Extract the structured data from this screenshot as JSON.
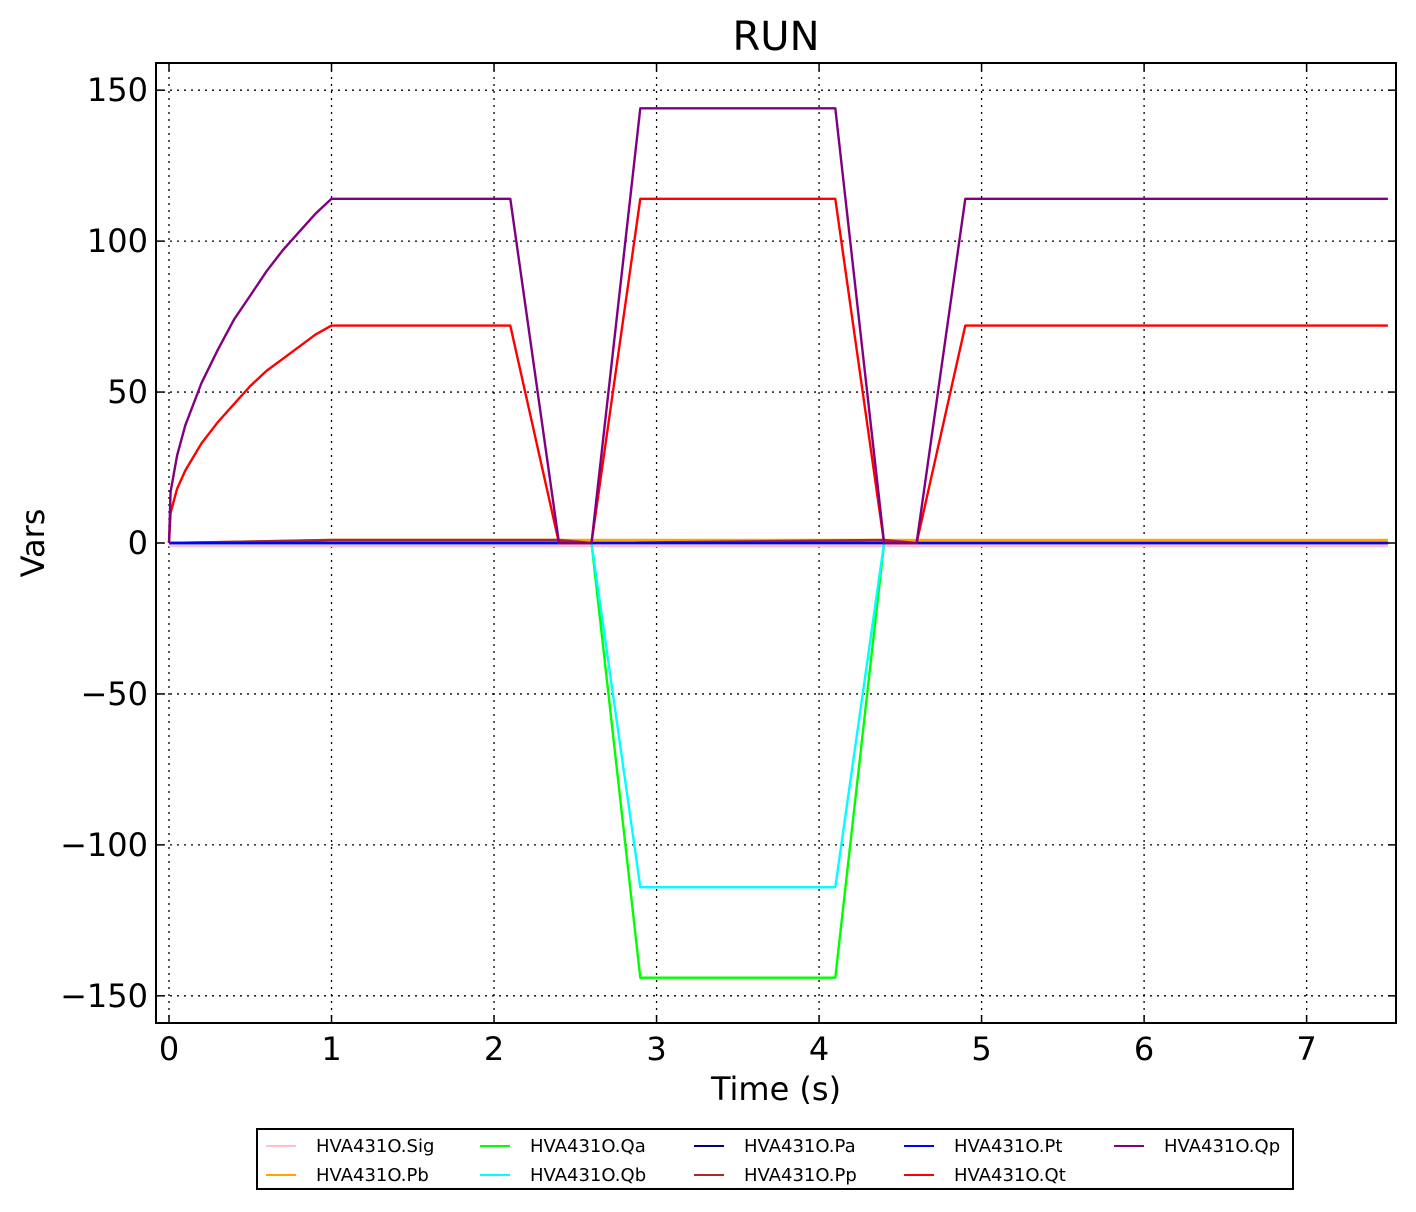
{
  "chart_data": {
    "type": "line",
    "title": "RUN",
    "xlabel": "Time (s)",
    "ylabel": "Vars",
    "xlim": [
      -0.08,
      7.55
    ],
    "ylim": [
      -159,
      159
    ],
    "xticks": [
      0,
      1,
      2,
      3,
      4,
      5,
      6,
      7
    ],
    "yticks": [
      150,
      100,
      50,
      0,
      -50,
      -100,
      -150
    ],
    "ytick_labels": [
      "150",
      "100",
      "50",
      "0",
      "−50",
      "−100",
      "−150"
    ],
    "grid": true,
    "legend_position": "bottom",
    "series": [
      {
        "name": "HVA431O.Sig",
        "color": "#ffc0cb",
        "x": [
          0,
          7.5
        ],
        "y": [
          -1,
          -1
        ]
      },
      {
        "name": "HVA431O.Pb",
        "color": "#ffa500",
        "x": [
          0,
          1,
          7.5
        ],
        "y": [
          0,
          1,
          1
        ]
      },
      {
        "name": "HVA431O.Qa",
        "color": "#00ff00",
        "x": [
          0,
          2.6,
          2.9,
          4.1,
          4.4,
          7.5
        ],
        "y": [
          0,
          0,
          -144,
          -144,
          0,
          0
        ]
      },
      {
        "name": "HVA431O.Qb",
        "color": "#00ffff",
        "x": [
          0,
          2.6,
          2.9,
          4.1,
          4.4,
          7.5
        ],
        "y": [
          0,
          0,
          -114,
          -114,
          0,
          0
        ]
      },
      {
        "name": "HVA431O.Pa",
        "color": "#000080",
        "x": [
          0,
          7.5
        ],
        "y": [
          0,
          0
        ]
      },
      {
        "name": "HVA431O.Pp",
        "color": "#a52a2a",
        "x": [
          0,
          1,
          2.4,
          2.6,
          4.4,
          4.6,
          7.5
        ],
        "y": [
          0,
          1,
          1,
          0,
          1,
          0,
          0
        ]
      },
      {
        "name": "HVA431O.Pt",
        "color": "#0000ff",
        "x": [
          0,
          7.5
        ],
        "y": [
          0,
          0
        ]
      },
      {
        "name": "HVA431O.Qt",
        "color": "#ff0000",
        "x": [
          0,
          0.01,
          0.05,
          0.1,
          0.2,
          0.3,
          0.4,
          0.5,
          0.6,
          0.7,
          0.8,
          0.9,
          1.0,
          2.1,
          2.4,
          2.6,
          2.9,
          4.1,
          4.4,
          4.6,
          4.9,
          7.5
        ],
        "y": [
          0,
          10,
          18,
          24,
          33,
          40,
          46,
          52,
          57,
          61,
          65,
          69,
          72,
          72,
          0,
          0,
          114,
          114,
          0,
          0,
          72,
          72
        ]
      },
      {
        "name": "HVA431O.Qp",
        "color": "#800080",
        "x": [
          0,
          0.01,
          0.05,
          0.1,
          0.2,
          0.3,
          0.4,
          0.5,
          0.6,
          0.7,
          0.8,
          0.9,
          1.0,
          2.1,
          2.4,
          2.6,
          2.9,
          4.1,
          4.4,
          4.6,
          4.9,
          7.5
        ],
        "y": [
          0,
          17,
          29,
          39,
          53,
          64,
          74,
          82,
          90,
          97,
          103,
          109,
          114,
          114,
          0,
          0,
          144,
          144,
          0,
          0,
          114,
          114
        ]
      }
    ]
  }
}
